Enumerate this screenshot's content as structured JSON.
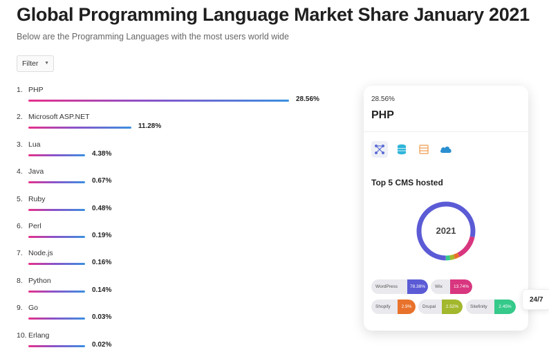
{
  "header": {
    "title": "Global Programming Language Market Share January 2021",
    "subtitle": "Below are the Programming Languages with the most users world wide"
  },
  "filter": {
    "label": "Filter"
  },
  "languages": [
    {
      "rank": "1.",
      "name": "PHP",
      "percent": "28.56%",
      "value": 28.56
    },
    {
      "rank": "2.",
      "name": "Microsoft ASP.NET",
      "percent": "11.28%",
      "value": 11.28
    },
    {
      "rank": "3.",
      "name": "Lua",
      "percent": "4.38%",
      "value": 4.38
    },
    {
      "rank": "4.",
      "name": "Java",
      "percent": "0.67%",
      "value": 0.67
    },
    {
      "rank": "5.",
      "name": "Ruby",
      "percent": "0.48%",
      "value": 0.48
    },
    {
      "rank": "6.",
      "name": "Perl",
      "percent": "0.19%",
      "value": 0.19
    },
    {
      "rank": "7.",
      "name": "Node.js",
      "percent": "0.16%",
      "value": 0.16
    },
    {
      "rank": "8.",
      "name": "Python",
      "percent": "0.14%",
      "value": 0.14
    },
    {
      "rank": "9.",
      "name": "Go",
      "percent": "0.03%",
      "value": 0.03
    },
    {
      "rank": "10.",
      "name": "Erlang",
      "percent": "0.02%",
      "value": 0.02
    }
  ],
  "detail_card": {
    "percent": "28.56%",
    "language": "PHP",
    "icons": [
      "network-icon",
      "database-icon",
      "server-icon",
      "cloud-icon"
    ],
    "section_title": "Top 5 CMS hosted",
    "donut_label": "2021",
    "cms": [
      {
        "name": "WordPress",
        "value": "78.38%",
        "share": 78.38,
        "color": "#5b5bd6"
      },
      {
        "name": "Wix",
        "value": "13.74%",
        "share": 13.74,
        "color": "#d8367f"
      },
      {
        "name": "Shopify",
        "value": "2.9%",
        "share": 2.9,
        "color": "#e8722b"
      },
      {
        "name": "Drupal",
        "value": "2.52%",
        "share": 2.52,
        "color": "#a3b82c"
      },
      {
        "name": "Sitefinity",
        "value": "2.45%",
        "share": 2.45,
        "color": "#35c98a"
      }
    ]
  },
  "side_tab": {
    "label": "24/7"
  }
}
